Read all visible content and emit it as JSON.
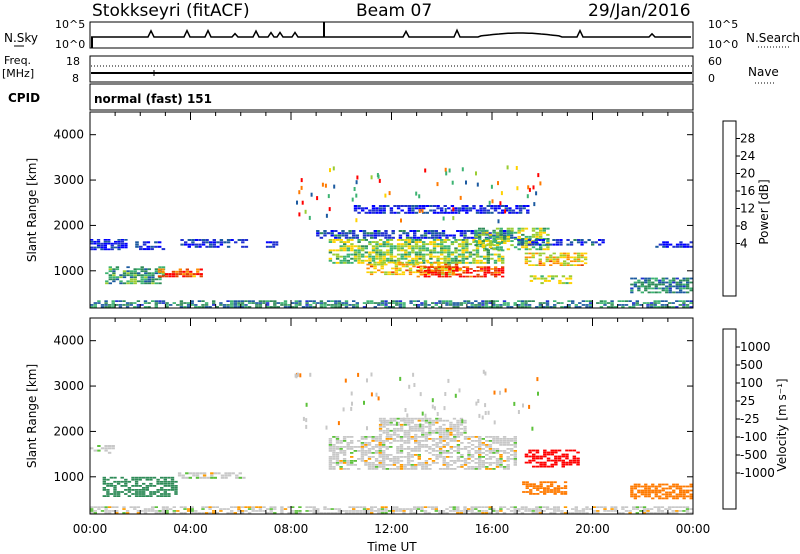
{
  "header": {
    "station": "Stokkseyri (fitACF)",
    "beam": "Beam 07",
    "date": "29/Jan/2016"
  },
  "strip_labels": {
    "nsky": "N.Sky",
    "nsky_ticks": [
      "10^5",
      "10^0"
    ],
    "freq_label_1": "Freq.",
    "freq_label_2": "[MHz]",
    "freq_ticks": [
      "18",
      "8"
    ],
    "cpid": "CPID",
    "cpid_value": "normal (fast) 151",
    "nsearch": "N.Search",
    "nsearch_ticks": [
      "10^5",
      "10^0"
    ],
    "nave": "Nave",
    "nave_ticks": [
      "60",
      "0"
    ]
  },
  "colorbars": {
    "power_label": "Power [dB]",
    "power_ticks": [
      "28",
      "24",
      "20",
      "16",
      "12",
      "8",
      "4"
    ],
    "power_colors": [
      "#ff0000",
      "#e64000",
      "#ff8c00",
      "#ffd200",
      "#9acd32",
      "#3cb371",
      "#2e8b57",
      "#1c5aa0",
      "#2030d0",
      "#0000ff"
    ],
    "velocity_label": "Velocity [m s⁻¹]",
    "velocity_ticks": [
      "1000",
      "500",
      "100",
      "25",
      "-25",
      "-100",
      "-500",
      "-1000"
    ],
    "velocity_colors": [
      "#1a3fb5",
      "#2a6a9a",
      "#2e8b57",
      "#5cc13a",
      "#c8c8c8",
      "#c8c8c8",
      "#ff9c00",
      "#ff7a00",
      "#ff5000",
      "#ff0000"
    ],
    "scatter_palette": [
      "#ff0000",
      "#ff7a00",
      "#ffd200",
      "#9acd32",
      "#3cb371",
      "#1c5aa0"
    ]
  },
  "chart_data": [
    {
      "type": "heatmap",
      "panel": "power",
      "ylabel": "Slant Range [km]",
      "yticks": [
        "4000",
        "3000",
        "2000",
        "1000"
      ],
      "ylim": [
        180,
        4500
      ],
      "xlim": [
        0,
        24
      ],
      "xticks": [
        "00:00",
        "04:00",
        "08:00",
        "12:00",
        "16:00",
        "20:00",
        "00:00"
      ],
      "value_units": "dB",
      "value_range": [
        3,
        30
      ],
      "regions": [
        {
          "x": [
            0.0,
            1.5
          ],
          "y": [
            1450,
            1700
          ],
          "value": 6
        },
        {
          "x": [
            1.8,
            3.0
          ],
          "y": [
            1450,
            1650
          ],
          "value": 6
        },
        {
          "x": [
            3.6,
            6.3
          ],
          "y": [
            1500,
            1700
          ],
          "value": 7
        },
        {
          "x": [
            7.0,
            7.5
          ],
          "y": [
            1500,
            1650
          ],
          "value": 6
        },
        {
          "x": [
            0.6,
            3.0
          ],
          "y": [
            700,
            1100
          ],
          "value": 14
        },
        {
          "x": [
            2.7,
            4.5
          ],
          "y": [
            850,
            1050
          ],
          "value": 25
        },
        {
          "x": [
            0.0,
            24.0
          ],
          "y": [
            180,
            350
          ],
          "value": 12
        },
        {
          "x": [
            9.0,
            17.0
          ],
          "y": [
            1700,
            1900
          ],
          "value": 8
        },
        {
          "x": [
            9.5,
            16.5
          ],
          "y": [
            1150,
            1700
          ],
          "value": 17
        },
        {
          "x": [
            11.0,
            14.8
          ],
          "y": [
            900,
            1200
          ],
          "value": 21
        },
        {
          "x": [
            13.0,
            16.5
          ],
          "y": [
            850,
            1100
          ],
          "value": 27
        },
        {
          "x": [
            15.3,
            18.3
          ],
          "y": [
            1450,
            1950
          ],
          "value": 17
        },
        {
          "x": [
            17.3,
            19.8
          ],
          "y": [
            1100,
            1400
          ],
          "value": 21
        },
        {
          "x": [
            17.5,
            19.2
          ],
          "y": [
            700,
            900
          ],
          "value": 18
        },
        {
          "x": [
            17.0,
            20.5
          ],
          "y": [
            1550,
            1700
          ],
          "value": 8
        },
        {
          "x": [
            10.5,
            17.5
          ],
          "y": [
            2250,
            2450
          ],
          "value": 6
        },
        {
          "x": [
            21.5,
            24.0
          ],
          "y": [
            500,
            850
          ],
          "value": 12
        },
        {
          "x": [
            22.5,
            24.0
          ],
          "y": [
            1500,
            1650
          ],
          "value": 6
        }
      ]
    },
    {
      "type": "heatmap",
      "panel": "velocity",
      "ylabel": "Slant Range [km]",
      "yticks": [
        "4000",
        "3000",
        "2000",
        "1000"
      ],
      "ylim": [
        180,
        4500
      ],
      "xlim": [
        0,
        24
      ],
      "xticks": [
        "00:00",
        "04:00",
        "08:00",
        "12:00",
        "16:00",
        "20:00",
        "00:00"
      ],
      "xlabel": "Time UT",
      "value_units": "m/s",
      "regions": [
        {
          "x": [
            0.0,
            1.0
          ],
          "y": [
            1500,
            1700
          ],
          "value": 0
        },
        {
          "x": [
            3.5,
            6.2
          ],
          "y": [
            950,
            1100
          ],
          "value": 0
        },
        {
          "x": [
            0.5,
            3.5
          ],
          "y": [
            550,
            1000
          ],
          "value": 150
        },
        {
          "x": [
            9.5,
            17.0
          ],
          "y": [
            1150,
            1900
          ],
          "value": 0
        },
        {
          "x": [
            11.5,
            15.0
          ],
          "y": [
            1900,
            2300
          ],
          "value": 0
        },
        {
          "x": [
            17.3,
            19.5
          ],
          "y": [
            1200,
            1600
          ],
          "value": -1000
        },
        {
          "x": [
            17.2,
            19.0
          ],
          "y": [
            600,
            900
          ],
          "value": -300
        },
        {
          "x": [
            21.5,
            24.0
          ],
          "y": [
            500,
            850
          ],
          "value": -300
        },
        {
          "x": [
            0.0,
            24.0
          ],
          "y": [
            180,
            350
          ],
          "value": 0
        }
      ]
    }
  ]
}
